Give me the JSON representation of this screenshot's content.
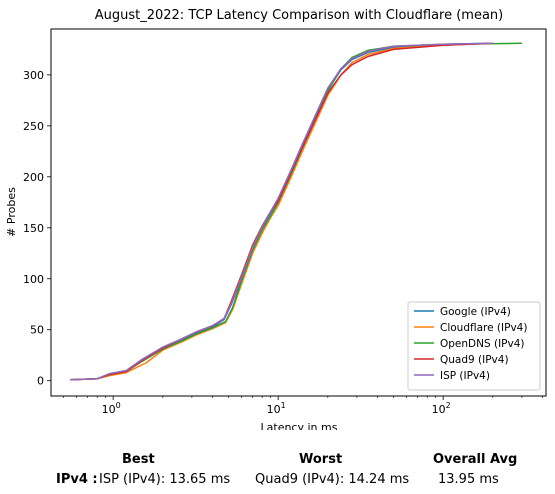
{
  "chart_data": {
    "type": "line",
    "title": "August_2022: TCP Latency Comparison with Cloudflare (mean)",
    "xlabel": "Latency in ms",
    "ylabel": "# Probes",
    "x_scale": "log",
    "xlim": [
      0.42,
      420
    ],
    "ylim": [
      -15,
      345
    ],
    "x_ticks": [
      {
        "value": 1,
        "base": "10",
        "exp": "0"
      },
      {
        "value": 10,
        "base": "10",
        "exp": "1"
      },
      {
        "value": 100,
        "base": "10",
        "exp": "2"
      }
    ],
    "y_ticks": [
      0,
      50,
      100,
      150,
      200,
      250,
      300
    ],
    "grid": false,
    "legend_position": "lower right",
    "series": [
      {
        "name": "Google (IPv4)",
        "color": "#1f77b4",
        "x": [
          0.55,
          0.8,
          0.95,
          1.2,
          1.5,
          2.0,
          2.6,
          3.2,
          4.0,
          4.7,
          5.2,
          6.0,
          7.0,
          8.0,
          9.0,
          10.0,
          12.0,
          14.0,
          17.0,
          20.0,
          24.0,
          28.0,
          35.0,
          50.0,
          100.0,
          200.0
        ],
        "y": [
          1,
          2,
          6,
          9,
          20,
          32,
          40,
          47,
          53,
          60,
          75,
          100,
          130,
          150,
          165,
          178,
          205,
          230,
          260,
          285,
          305,
          315,
          322,
          327,
          330,
          331
        ]
      },
      {
        "name": "Cloudflare (IPv4)",
        "color": "#ff7f0e",
        "x": [
          0.55,
          0.8,
          0.95,
          1.2,
          1.6,
          2.0,
          2.6,
          3.2,
          4.0,
          4.8,
          5.3,
          6.0,
          7.0,
          8.0,
          9.0,
          10.0,
          12.0,
          14.0,
          17.0,
          20.0,
          24.0,
          28.0,
          35.0,
          50.0,
          100.0,
          200.0
        ],
        "y": [
          1,
          2,
          5,
          8,
          18,
          30,
          38,
          45,
          51,
          57,
          70,
          95,
          125,
          145,
          160,
          172,
          200,
          225,
          255,
          280,
          300,
          312,
          320,
          326,
          329,
          331
        ]
      },
      {
        "name": "OpenDNS (IPv4)",
        "color": "#2ca02c",
        "x": [
          0.55,
          0.8,
          0.95,
          1.2,
          1.5,
          2.0,
          2.6,
          3.2,
          4.0,
          4.8,
          5.3,
          6.0,
          7.0,
          8.0,
          9.0,
          10.0,
          12.0,
          14.0,
          17.0,
          20.0,
          24.0,
          28.0,
          35.0,
          50.0,
          100.0,
          300.0
        ],
        "y": [
          1,
          2,
          6,
          9,
          19,
          31,
          39,
          46,
          52,
          58,
          72,
          98,
          128,
          148,
          162,
          175,
          203,
          228,
          258,
          284,
          306,
          317,
          324,
          328,
          330,
          331
        ]
      },
      {
        "name": "Quad9 (IPv4)",
        "color": "#d62728",
        "x": [
          0.55,
          0.8,
          0.95,
          1.2,
          1.5,
          2.0,
          2.6,
          3.2,
          4.0,
          4.7,
          5.2,
          6.0,
          7.0,
          8.0,
          9.0,
          10.0,
          12.0,
          14.0,
          17.0,
          20.0,
          24.0,
          28.0,
          35.0,
          50.0,
          100.0,
          200.0
        ],
        "y": [
          1,
          2,
          6,
          9,
          20,
          32,
          41,
          48,
          54,
          61,
          78,
          104,
          133,
          152,
          166,
          176,
          205,
          229,
          258,
          282,
          300,
          310,
          318,
          325,
          329,
          331
        ]
      },
      {
        "name": "ISP (IPv4)",
        "color": "#9467bd",
        "x": [
          0.55,
          0.8,
          0.95,
          1.2,
          1.5,
          2.0,
          2.6,
          3.2,
          4.0,
          4.7,
          5.2,
          6.0,
          7.0,
          8.0,
          9.0,
          10.0,
          12.0,
          14.0,
          17.0,
          20.0,
          24.0,
          28.0,
          35.0,
          50.0,
          100.0,
          200.0
        ],
        "y": [
          1,
          2,
          7,
          10,
          21,
          33,
          41,
          48,
          54,
          61,
          76,
          102,
          131,
          151,
          166,
          179,
          207,
          232,
          262,
          287,
          306,
          316,
          323,
          328,
          330,
          331
        ]
      }
    ]
  },
  "summary": {
    "best_header": "Best",
    "worst_header": "Worst",
    "avg_header": "Overall Avg",
    "row_label": "IPv4 :",
    "best_value": "ISP (IPv4): 13.65 ms",
    "worst_value": "Quad9 (IPv4): 14.24 ms",
    "avg_value": "13.95 ms"
  }
}
